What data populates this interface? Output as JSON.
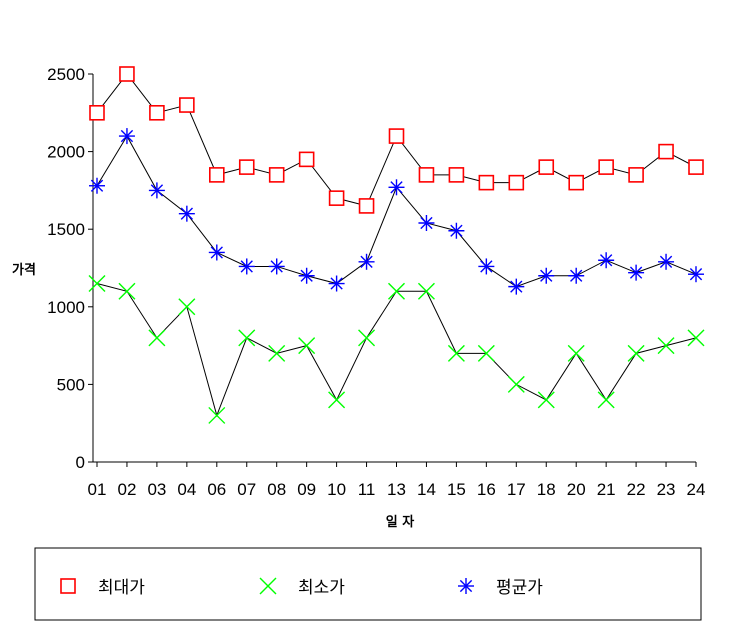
{
  "chart_data": {
    "type": "line",
    "title": "",
    "xlabel": "일 자",
    "ylabel": "가격",
    "categories": [
      "01",
      "02",
      "03",
      "04",
      "06",
      "07",
      "08",
      "09",
      "10",
      "11",
      "13",
      "14",
      "15",
      "16",
      "17",
      "18",
      "20",
      "21",
      "22",
      "23",
      "24"
    ],
    "ylim": [
      0,
      2500
    ],
    "yticks": [
      0,
      500,
      1000,
      1500,
      2000,
      2500
    ],
    "grid": false,
    "legend_position": "bottom",
    "series": [
      {
        "name": "최대가",
        "marker": "square",
        "color": "#ff0000",
        "values": [
          2250,
          2500,
          2250,
          2300,
          1850,
          1900,
          1850,
          1950,
          1700,
          1650,
          2100,
          1850,
          1850,
          1800,
          1800,
          1900,
          1800,
          1900,
          1850,
          2000,
          1900
        ]
      },
      {
        "name": "최소가",
        "marker": "x",
        "color": "#00ff00",
        "values": [
          1150,
          1100,
          800,
          1000,
          300,
          800,
          700,
          750,
          400,
          800,
          1100,
          1100,
          700,
          700,
          500,
          400,
          700,
          400,
          700,
          750,
          800
        ]
      },
      {
        "name": "평균가",
        "marker": "asterisk",
        "color": "#0000ff",
        "values": [
          1780,
          2100,
          1750,
          1600,
          1350,
          1260,
          1260,
          1200,
          1150,
          1290,
          1770,
          1540,
          1490,
          1260,
          1130,
          1200,
          1200,
          1300,
          1220,
          1290,
          1210
        ]
      }
    ]
  }
}
